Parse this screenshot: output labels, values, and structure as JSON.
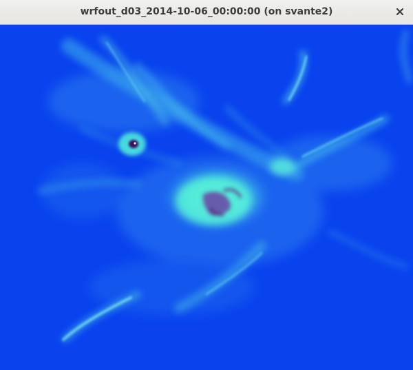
{
  "window": {
    "title": "wrfout_d03_2014-10-06_00:00:00 (on svante2)",
    "close_icon": "close-icon"
  },
  "plot": {
    "background_color": "#0a43ee",
    "colormap": [
      "#0a43ee",
      "#2a7ef0",
      "#3fc2ea",
      "#4ff0d8",
      "#5c2a8a",
      "#2b0a4a"
    ]
  }
}
